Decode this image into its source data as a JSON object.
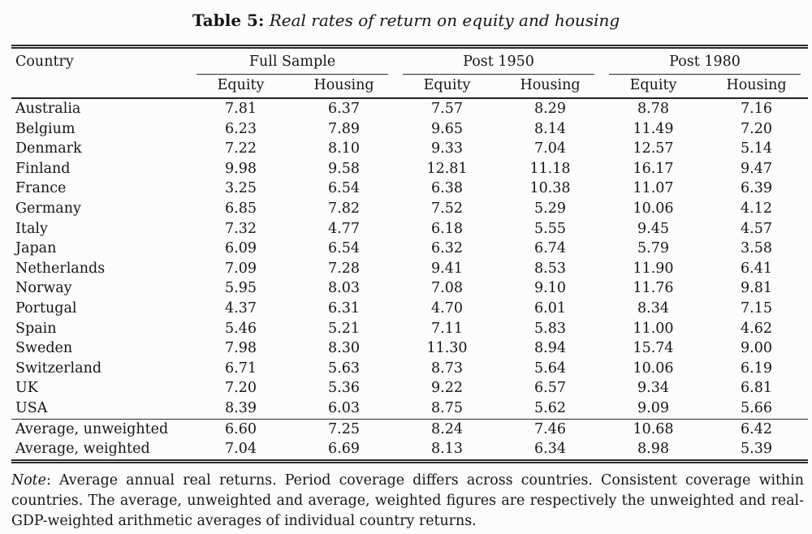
{
  "title": {
    "label": "Table 5:",
    "caption": "Real rates of return on equity and housing"
  },
  "table": {
    "country_header": "Country",
    "groups": [
      {
        "label": "Full Sample"
      },
      {
        "label": "Post 1950"
      },
      {
        "label": "Post 1980"
      }
    ],
    "sub_headers": [
      "Equity",
      "Housing",
      "Equity",
      "Housing",
      "Equity",
      "Housing"
    ],
    "rows": [
      {
        "country": "Australia",
        "values": [
          "7.81",
          "6.37",
          "7.57",
          "8.29",
          "8.78",
          "7.16"
        ]
      },
      {
        "country": "Belgium",
        "values": [
          "6.23",
          "7.89",
          "9.65",
          "8.14",
          "11.49",
          "7.20"
        ]
      },
      {
        "country": "Denmark",
        "values": [
          "7.22",
          "8.10",
          "9.33",
          "7.04",
          "12.57",
          "5.14"
        ]
      },
      {
        "country": "Finland",
        "values": [
          "9.98",
          "9.58",
          "12.81",
          "11.18",
          "16.17",
          "9.47"
        ]
      },
      {
        "country": "France",
        "values": [
          "3.25",
          "6.54",
          "6.38",
          "10.38",
          "11.07",
          "6.39"
        ]
      },
      {
        "country": "Germany",
        "values": [
          "6.85",
          "7.82",
          "7.52",
          "5.29",
          "10.06",
          "4.12"
        ]
      },
      {
        "country": "Italy",
        "values": [
          "7.32",
          "4.77",
          "6.18",
          "5.55",
          "9.45",
          "4.57"
        ]
      },
      {
        "country": "Japan",
        "values": [
          "6.09",
          "6.54",
          "6.32",
          "6.74",
          "5.79",
          "3.58"
        ]
      },
      {
        "country": "Netherlands",
        "values": [
          "7.09",
          "7.28",
          "9.41",
          "8.53",
          "11.90",
          "6.41"
        ]
      },
      {
        "country": "Norway",
        "values": [
          "5.95",
          "8.03",
          "7.08",
          "9.10",
          "11.76",
          "9.81"
        ]
      },
      {
        "country": "Portugal",
        "values": [
          "4.37",
          "6.31",
          "4.70",
          "6.01",
          "8.34",
          "7.15"
        ]
      },
      {
        "country": "Spain",
        "values": [
          "5.46",
          "5.21",
          "7.11",
          "5.83",
          "11.00",
          "4.62"
        ]
      },
      {
        "country": "Sweden",
        "values": [
          "7.98",
          "8.30",
          "11.30",
          "8.94",
          "15.74",
          "9.00"
        ]
      },
      {
        "country": "Switzerland",
        "values": [
          "6.71",
          "5.63",
          "8.73",
          "5.64",
          "10.06",
          "6.19"
        ]
      },
      {
        "country": "UK",
        "values": [
          "7.20",
          "5.36",
          "9.22",
          "6.57",
          "9.34",
          "6.81"
        ]
      },
      {
        "country": "USA",
        "values": [
          "8.39",
          "6.03",
          "8.75",
          "5.62",
          "9.09",
          "5.66"
        ]
      }
    ],
    "summary_rows": [
      {
        "country": "Average, unweighted",
        "values": [
          "6.60",
          "7.25",
          "8.24",
          "7.46",
          "10.68",
          "6.42"
        ]
      },
      {
        "country": "Average, weighted",
        "values": [
          "7.04",
          "6.69",
          "8.13",
          "6.34",
          "8.98",
          "5.39"
        ]
      }
    ]
  },
  "note": {
    "label": "Note",
    "text": ":  Average annual real returns.  Period coverage differs across countries.  Consistent coverage within countries.  The average, unweighted and average, weighted figures are respectively the unweighted and real-GDP-weighted arithmetic averages of individual country returns."
  }
}
